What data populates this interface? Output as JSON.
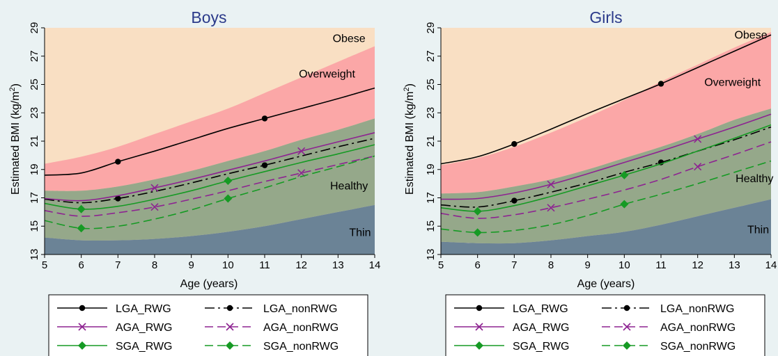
{
  "figure": {
    "background": "#eaf2f3"
  },
  "colors": {
    "obese": "#f9dfc3",
    "overweight": "#fba7a7",
    "healthy": "#95a88a",
    "thin": "#6b8396",
    "lga": "#000000",
    "aga": "#8d2391",
    "sga": "#169a24",
    "title": "#2b3a8a"
  },
  "chart_data": [
    {
      "type": "line",
      "title": "Boys",
      "xlabel": "Age (years)",
      "ylabel": "Estimated BMI (kg/m²)",
      "xlim": [
        5,
        14
      ],
      "ylim": [
        13,
        29
      ],
      "xticks": [
        5,
        6,
        7,
        8,
        9,
        10,
        11,
        12,
        13,
        14
      ],
      "yticks": [
        13,
        15,
        17,
        19,
        21,
        23,
        25,
        27,
        29
      ],
      "x": [
        5,
        6,
        7,
        8,
        9,
        10,
        11,
        12,
        13,
        14
      ],
      "zones": [
        {
          "name": "Obese",
          "lower": "Overweight upper bound",
          "upper": [
            29,
            29,
            29,
            29,
            29,
            29,
            29,
            29,
            29,
            29
          ]
        },
        {
          "name": "Overweight",
          "upper": [
            19.4,
            19.9,
            20.6,
            21.5,
            22.4,
            23.3,
            24.4,
            25.5,
            26.6,
            27.7
          ]
        },
        {
          "name": "Healthy",
          "upper": [
            17.5,
            17.5,
            17.8,
            18.3,
            18.9,
            19.6,
            20.3,
            21.1,
            21.8,
            22.6
          ]
        },
        {
          "name": "Thin",
          "upper": [
            14.2,
            14.0,
            14.0,
            14.1,
            14.3,
            14.6,
            15.0,
            15.5,
            16.0,
            16.5
          ]
        }
      ],
      "series": [
        {
          "name": "LGA_RWG",
          "group": "lga",
          "dashed": false,
          "marker": "circle",
          "marker_x": [
            7,
            11
          ],
          "values": [
            18.6,
            18.75,
            19.55,
            20.3,
            21.1,
            21.9,
            22.6,
            23.3,
            24.0,
            24.75
          ]
        },
        {
          "name": "LGA_nonRWG",
          "group": "lga",
          "dashed": true,
          "marker": "circle",
          "marker_x": [
            7,
            11
          ],
          "values": [
            16.9,
            16.65,
            16.95,
            17.45,
            18.05,
            18.7,
            19.3,
            19.95,
            20.6,
            21.2
          ]
        },
        {
          "name": "AGA_RWG",
          "group": "aga",
          "dashed": false,
          "marker": "x",
          "marker_x": [
            8,
            12
          ],
          "values": [
            16.95,
            16.8,
            17.15,
            17.7,
            18.3,
            18.95,
            19.6,
            20.3,
            20.95,
            21.6
          ]
        },
        {
          "name": "AGA_nonRWG",
          "group": "aga",
          "dashed": true,
          "marker": "x",
          "marker_x": [
            8,
            12
          ],
          "values": [
            16.1,
            15.7,
            15.95,
            16.35,
            16.9,
            17.5,
            18.15,
            18.75,
            19.35,
            19.95
          ]
        },
        {
          "name": "SGA_RWG",
          "group": "sga",
          "dashed": false,
          "marker": "diamond",
          "marker_x": [
            6,
            10
          ],
          "values": [
            16.6,
            16.2,
            16.4,
            16.9,
            17.5,
            18.2,
            18.85,
            19.5,
            20.1,
            20.75
          ]
        },
        {
          "name": "SGA_nonRWG",
          "group": "sga",
          "dashed": true,
          "marker": "diamond",
          "marker_x": [
            6,
            10
          ],
          "values": [
            15.4,
            14.85,
            15.0,
            15.5,
            16.15,
            16.95,
            17.7,
            18.5,
            19.2,
            19.95
          ]
        }
      ],
      "zone_labels": [
        {
          "text": "Obese",
          "x": 13.3,
          "y": 28.0
        },
        {
          "text": "Overweight",
          "x": 12.7,
          "y": 25.5
        },
        {
          "text": "Healthy",
          "x": 13.3,
          "y": 17.6
        },
        {
          "text": "Thin",
          "x": 13.6,
          "y": 14.3
        }
      ]
    },
    {
      "type": "line",
      "title": "Girls",
      "xlabel": "Age (years)",
      "ylabel": "Estimated BMI (kg/m²)",
      "xlim": [
        5,
        14
      ],
      "ylim": [
        13,
        29
      ],
      "xticks": [
        5,
        6,
        7,
        8,
        9,
        10,
        11,
        12,
        13,
        14
      ],
      "yticks": [
        13,
        15,
        17,
        19,
        21,
        23,
        25,
        27,
        29
      ],
      "x": [
        5,
        6,
        7,
        8,
        9,
        10,
        11,
        12,
        13,
        14
      ],
      "zones": [
        {
          "name": "Obese",
          "upper": [
            29,
            29,
            29,
            29,
            29,
            29,
            29,
            29,
            29,
            29
          ]
        },
        {
          "name": "Overweight",
          "upper": [
            19.3,
            19.8,
            20.6,
            21.6,
            22.7,
            23.9,
            25.2,
            26.4,
            27.6,
            28.7
          ]
        },
        {
          "name": "Healthy",
          "upper": [
            17.3,
            17.4,
            17.8,
            18.3,
            19.0,
            19.8,
            20.6,
            21.5,
            22.5,
            23.3
          ]
        },
        {
          "name": "Thin",
          "upper": [
            13.9,
            13.8,
            13.8,
            14.0,
            14.3,
            14.6,
            15.1,
            15.7,
            16.3,
            16.9
          ]
        }
      ],
      "series": [
        {
          "name": "LGA_RWG",
          "group": "lga",
          "dashed": false,
          "marker": "circle",
          "marker_x": [
            7,
            11
          ],
          "values": [
            19.4,
            19.9,
            20.8,
            21.85,
            22.95,
            24.0,
            25.05,
            26.2,
            27.35,
            28.5
          ]
        },
        {
          "name": "LGA_nonRWG",
          "group": "lga",
          "dashed": true,
          "marker": "circle",
          "marker_x": [
            7,
            11
          ],
          "values": [
            16.5,
            16.35,
            16.8,
            17.4,
            18.05,
            18.8,
            19.5,
            20.3,
            21.1,
            22.0
          ]
        },
        {
          "name": "AGA_RWG",
          "group": "aga",
          "dashed": false,
          "marker": "x",
          "marker_x": [
            8,
            12
          ],
          "values": [
            16.9,
            16.95,
            17.35,
            17.95,
            18.7,
            19.5,
            20.3,
            21.15,
            22.0,
            22.9
          ]
        },
        {
          "name": "AGA_nonRWG",
          "group": "aga",
          "dashed": true,
          "marker": "x",
          "marker_x": [
            8,
            12
          ],
          "values": [
            15.9,
            15.55,
            15.8,
            16.3,
            16.9,
            17.55,
            18.3,
            19.2,
            20.05,
            20.95
          ]
        },
        {
          "name": "SGA_RWG",
          "group": "sga",
          "dashed": false,
          "marker": "diamond",
          "marker_x": [
            6,
            10
          ],
          "values": [
            16.3,
            16.05,
            16.45,
            17.1,
            17.85,
            18.6,
            19.4,
            20.3,
            21.2,
            22.15
          ]
        },
        {
          "name": "SGA_nonRWG",
          "group": "sga",
          "dashed": true,
          "marker": "diamond",
          "marker_x": [
            6,
            10
          ],
          "values": [
            14.8,
            14.55,
            14.7,
            15.1,
            15.75,
            16.55,
            17.25,
            18.0,
            18.8,
            19.6
          ]
        }
      ],
      "zone_labels": [
        {
          "text": "Obese",
          "x": 13.45,
          "y": 28.25
        },
        {
          "text": "Overweight",
          "x": 12.95,
          "y": 24.9
        },
        {
          "text": "Healthy",
          "x": 13.55,
          "y": 18.1
        },
        {
          "text": "Thin",
          "x": 13.65,
          "y": 14.5
        }
      ]
    }
  ],
  "legend": {
    "items": [
      {
        "name": "LGA_RWG",
        "group": "lga",
        "dashed": false,
        "marker": "circle"
      },
      {
        "name": "LGA_nonRWG",
        "group": "lga",
        "dashed": true,
        "marker": "circle"
      },
      {
        "name": "AGA_RWG",
        "group": "aga",
        "dashed": false,
        "marker": "x"
      },
      {
        "name": "AGA_nonRWG",
        "group": "aga",
        "dashed": true,
        "marker": "x"
      },
      {
        "name": "SGA_RWG",
        "group": "sga",
        "dashed": false,
        "marker": "diamond"
      },
      {
        "name": "SGA_nonRWG",
        "group": "sga",
        "dashed": true,
        "marker": "diamond"
      }
    ]
  }
}
